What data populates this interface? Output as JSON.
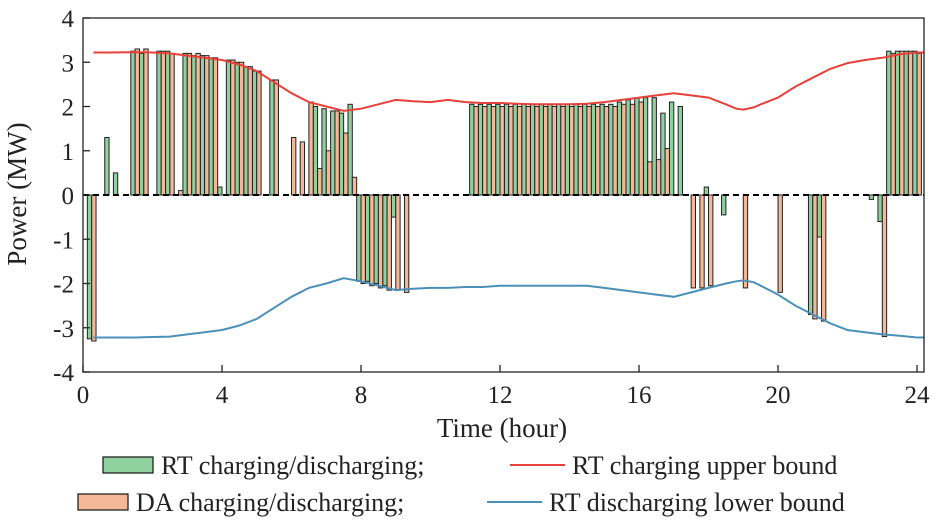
{
  "chart_data": {
    "type": "bar",
    "xlabel": "Time (hour)",
    "ylabel": "Power (MW)",
    "xlim": [
      0,
      24.2
    ],
    "ylim": [
      -4,
      4
    ],
    "xticks": [
      0,
      4,
      8,
      12,
      16,
      20,
      24
    ],
    "yticks": [
      -4,
      -3,
      -2,
      -1,
      0,
      1,
      2,
      3,
      4
    ],
    "grid": false,
    "legend_position": "bottom",
    "legend": [
      {
        "key": "rt",
        "label": "RT charging/discharging;",
        "color": "#8fd19e"
      },
      {
        "key": "upper",
        "label": "RT charging upper bound",
        "color": "#e8403a"
      },
      {
        "key": "da",
        "label": "DA charging/discharging;",
        "color": "#f4b899"
      },
      {
        "key": "lower",
        "label": "RT discharging lower bound",
        "color": "#4a90b8"
      }
    ],
    "bar_width_hours": 0.125,
    "x": [
      0.25,
      0.5,
      0.75,
      1.0,
      1.25,
      1.5,
      1.75,
      2.0,
      2.25,
      2.5,
      2.75,
      3.0,
      3.25,
      3.5,
      3.75,
      4.0,
      4.25,
      4.5,
      4.75,
      5.0,
      5.25,
      5.5,
      5.75,
      6.0,
      6.25,
      6.5,
      6.75,
      7.0,
      7.25,
      7.5,
      7.75,
      8.0,
      8.25,
      8.5,
      8.75,
      9.0,
      9.25,
      9.5,
      9.75,
      10.0,
      10.25,
      10.5,
      10.75,
      11.0,
      11.25,
      11.5,
      11.75,
      12.0,
      12.25,
      12.5,
      12.75,
      13.0,
      13.25,
      13.5,
      13.75,
      14.0,
      14.25,
      14.5,
      14.75,
      15.0,
      15.25,
      15.5,
      15.75,
      16.0,
      16.25,
      16.5,
      16.75,
      17.0,
      17.25,
      17.5,
      17.75,
      18.0,
      18.25,
      18.5,
      18.75,
      19.0,
      19.25,
      19.5,
      19.75,
      20.0,
      20.25,
      20.5,
      20.75,
      21.0,
      21.25,
      21.5,
      21.75,
      22.0,
      22.25,
      22.5,
      22.75,
      23.0,
      23.25,
      23.5,
      23.75,
      24.0
    ],
    "series": [
      {
        "name": "RT charging/discharging;",
        "values": [
          -3.25,
          0,
          1.3,
          0.5,
          0,
          3.25,
          3.2,
          0,
          3.25,
          3.25,
          0,
          3.2,
          3.15,
          3.15,
          3.1,
          0.18,
          3.05,
          3.0,
          2.9,
          2.8,
          0,
          2.6,
          0,
          0,
          0,
          0,
          2.0,
          1.95,
          1.9,
          1.85,
          2.05,
          -1.95,
          -1.95,
          -2.0,
          -2.05,
          -0.5,
          0,
          0,
          0,
          0,
          0,
          0,
          0,
          0,
          2.05,
          2.05,
          2.05,
          2.05,
          2.05,
          2.05,
          2.05,
          2.05,
          2.05,
          2.05,
          2.05,
          2.05,
          2.05,
          2.05,
          2.05,
          2.05,
          2.05,
          2.1,
          2.15,
          2.2,
          2.2,
          2.2,
          1.85,
          2.1,
          2.0,
          0,
          0,
          0.18,
          0,
          -0.45,
          0,
          0,
          0,
          0,
          0,
          0,
          0,
          0,
          0,
          -2.7,
          -0.95,
          0,
          0,
          0,
          0,
          0,
          -0.1,
          -0.6,
          3.25,
          3.25,
          3.25,
          3.25
        ]
      },
      {
        "name": "DA charging/discharging;",
        "values": [
          -3.3,
          0,
          0,
          0,
          0,
          3.3,
          3.3,
          0,
          3.25,
          3.2,
          0.1,
          3.2,
          3.2,
          3.15,
          3.1,
          0,
          3.05,
          3.0,
          2.9,
          2.8,
          0,
          2.6,
          0,
          1.3,
          1.2,
          2.1,
          0.6,
          1.0,
          1.9,
          1.4,
          0.4,
          -2.0,
          -2.05,
          -2.1,
          -2.15,
          -2.15,
          -2.2,
          0,
          0,
          0,
          0,
          0,
          0,
          0,
          2.0,
          2.0,
          2.0,
          2.0,
          2.0,
          2.0,
          2.0,
          2.0,
          2.0,
          2.0,
          2.0,
          2.0,
          2.0,
          2.0,
          2.0,
          2.0,
          2.0,
          2.05,
          2.05,
          2.1,
          0.75,
          0.8,
          1.05,
          0,
          0,
          -2.1,
          -2.1,
          -2.05,
          0,
          0,
          0,
          -2.1,
          0,
          0,
          0,
          -2.2,
          0,
          0,
          0,
          -2.8,
          -2.85,
          0,
          0,
          0,
          0,
          0,
          0,
          -3.2,
          3.2,
          3.25,
          3.25,
          3.2
        ]
      }
    ],
    "lines": [
      {
        "name": "RT charging upper bound",
        "x": [
          0.3,
          0.8,
          1.5,
          2.0,
          2.5,
          3.0,
          3.5,
          4.0,
          4.5,
          5.0,
          5.5,
          6.0,
          6.5,
          7.0,
          7.5,
          8.0,
          8.5,
          9.0,
          9.5,
          10.0,
          10.5,
          11.0,
          11.5,
          12.0,
          12.5,
          13.0,
          13.5,
          14.0,
          14.5,
          15.0,
          15.5,
          16.0,
          16.5,
          17.0,
          17.5,
          18.0,
          18.5,
          18.8,
          19.0,
          19.3,
          19.5,
          20.0,
          20.5,
          21.0,
          21.5,
          22.0,
          22.5,
          23.0,
          23.5,
          24.0,
          24.2
        ],
        "y": [
          3.22,
          3.22,
          3.23,
          3.22,
          3.2,
          3.15,
          3.1,
          3.05,
          2.95,
          2.8,
          2.55,
          2.3,
          2.1,
          2.0,
          1.9,
          1.95,
          2.05,
          2.15,
          2.12,
          2.1,
          2.15,
          2.1,
          2.08,
          2.08,
          2.06,
          2.05,
          2.05,
          2.05,
          2.06,
          2.1,
          2.15,
          2.2,
          2.25,
          2.3,
          2.25,
          2.2,
          2.05,
          1.95,
          1.93,
          1.98,
          2.05,
          2.2,
          2.45,
          2.65,
          2.85,
          2.98,
          3.05,
          3.1,
          3.18,
          3.22,
          3.22
        ]
      },
      {
        "name": "RT discharging lower bound",
        "x": [
          0.3,
          0.8,
          1.5,
          2.0,
          2.5,
          3.0,
          3.5,
          4.0,
          4.5,
          5.0,
          5.5,
          6.0,
          6.5,
          7.0,
          7.5,
          8.0,
          8.5,
          9.0,
          9.5,
          10.0,
          10.5,
          11.0,
          11.5,
          12.0,
          12.5,
          13.0,
          13.5,
          14.0,
          14.5,
          15.0,
          15.5,
          16.0,
          16.5,
          17.0,
          17.5,
          18.0,
          18.5,
          18.8,
          19.0,
          19.3,
          19.5,
          20.0,
          20.5,
          21.0,
          21.5,
          22.0,
          22.5,
          23.0,
          23.5,
          24.0,
          24.2
        ],
        "y": [
          -3.22,
          -3.22,
          -3.22,
          -3.21,
          -3.2,
          -3.15,
          -3.1,
          -3.05,
          -2.95,
          -2.8,
          -2.55,
          -2.3,
          -2.1,
          -2.0,
          -1.88,
          -1.95,
          -2.05,
          -2.15,
          -2.12,
          -2.1,
          -2.1,
          -2.08,
          -2.08,
          -2.05,
          -2.05,
          -2.05,
          -2.05,
          -2.05,
          -2.05,
          -2.1,
          -2.15,
          -2.2,
          -2.25,
          -2.3,
          -2.2,
          -2.1,
          -2.0,
          -1.95,
          -1.93,
          -1.97,
          -2.05,
          -2.25,
          -2.5,
          -2.7,
          -2.9,
          -3.05,
          -3.1,
          -3.15,
          -3.18,
          -3.22,
          -3.22
        ]
      }
    ]
  }
}
